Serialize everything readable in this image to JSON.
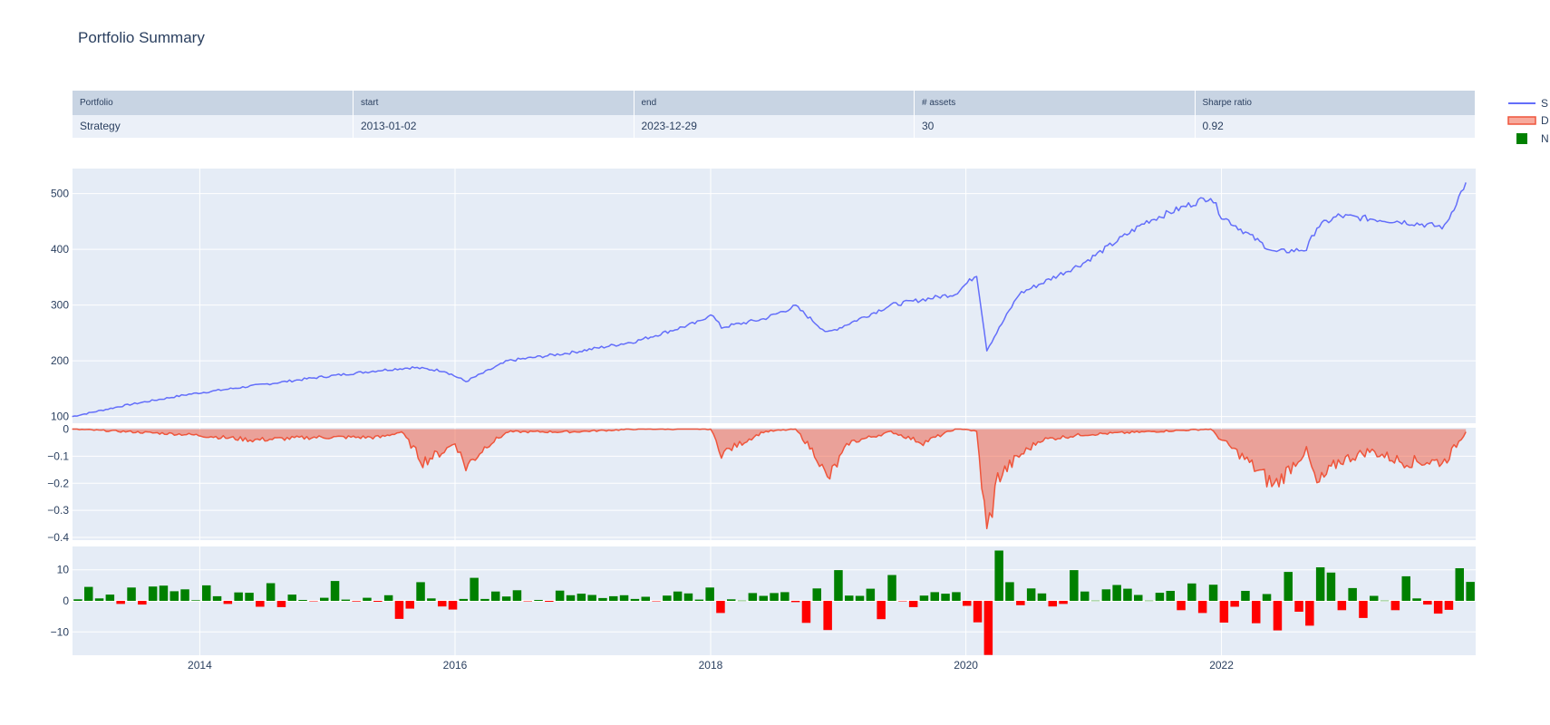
{
  "title": "Portfolio Summary",
  "table": {
    "headers": [
      "Portfolio",
      "start",
      "end",
      "# assets",
      "Sharpe ratio"
    ],
    "row": [
      "Strategy",
      "2013-01-02",
      "2023-12-29",
      "30",
      "0.92"
    ]
  },
  "colors": {
    "nav_line": "#636efa",
    "drawdown_line": "#ef553b",
    "drawdown_fill": "rgba(239,85,59,0.5)",
    "bar_positive": "#008000",
    "bar_negative": "#ff0000",
    "plot_bg": "#e5ecf6",
    "header_bg": "#c8d4e3",
    "cell_bg": "#ebf0f8"
  },
  "chart_data": {
    "type": "line",
    "x_range": [
      "2013-01-02",
      "2023-12-29"
    ],
    "x_ticks": [
      "2014",
      "2016",
      "2018",
      "2020",
      "2022"
    ],
    "legend": {
      "placement": "top-right",
      "entries": [
        {
          "name": "S",
          "kind": "line"
        },
        {
          "name": "D",
          "kind": "area"
        },
        {
          "name": "N",
          "kind": "bar"
        }
      ]
    },
    "panels": [
      {
        "name": "nav",
        "type": "line",
        "ylim": [
          88,
          545
        ],
        "y_ticks": [
          "100",
          "200",
          "300",
          "400",
          "500"
        ],
        "series": [
          {
            "x": [
              "2013-01",
              "2013-06",
              "2013-12",
              "2014-06",
              "2014-12",
              "2015-06",
              "2015-09",
              "2015-12",
              "2016-02",
              "2016-06",
              "2016-12",
              "2017-06",
              "2017-12",
              "2018-01",
              "2018-02",
              "2018-06",
              "2018-09",
              "2018-12",
              "2019-06",
              "2019-12",
              "2020-02",
              "2020-03",
              "2020-06",
              "2020-12",
              "2021-06",
              "2021-12",
              "2022-01",
              "2022-06",
              "2022-09",
              "2022-10",
              "2022-12",
              "2023-06",
              "2023-10",
              "2023-12"
            ],
            "y": [
              100,
              120,
              140,
              155,
              170,
              183,
              188,
              182,
              163,
              200,
              215,
              235,
              270,
              285,
              260,
              275,
              298,
              250,
              300,
              320,
              355,
              220,
              320,
              375,
              450,
              495,
              460,
              395,
              400,
              440,
              460,
              450,
              440,
              520
            ]
          }
        ]
      },
      {
        "name": "drawdown",
        "type": "area",
        "ylim": [
          -0.41,
          0.005
        ],
        "y_ticks": [
          "0",
          "−0.1",
          "−0.2",
          "−0.3",
          "−0.4"
        ],
        "series": [
          {
            "x": [
              "2013-01",
              "2013-12",
              "2014-06",
              "2014-12",
              "2015-06",
              "2015-08",
              "2015-10",
              "2015-12",
              "2016-01",
              "2016-02",
              "2016-04",
              "2016-06",
              "2016-12",
              "2017-06",
              "2017-12",
              "2018-01",
              "2018-02",
              "2018-04",
              "2018-06",
              "2018-09",
              "2018-11",
              "2018-12",
              "2019-02",
              "2019-06",
              "2019-09",
              "2019-12",
              "2020-01",
              "2020-02",
              "2020-03",
              "2020-04",
              "2020-06",
              "2020-08",
              "2020-12",
              "2021-06",
              "2021-12",
              "2022-01",
              "2022-03",
              "2022-06",
              "2022-08",
              "2022-09",
              "2022-10",
              "2022-12",
              "2023-03",
              "2023-06",
              "2023-10",
              "2023-12"
            ],
            "y": [
              0,
              -0.02,
              -0.04,
              -0.03,
              -0.03,
              -0.01,
              -0.12,
              -0.08,
              -0.05,
              -0.14,
              -0.06,
              -0.01,
              -0.01,
              0,
              0,
              0,
              -0.09,
              -0.05,
              -0.01,
              0,
              -0.1,
              -0.19,
              -0.05,
              -0.01,
              -0.05,
              0,
              0,
              -0.01,
              -0.39,
              -0.18,
              -0.1,
              -0.04,
              -0.02,
              -0.01,
              0,
              -0.04,
              -0.1,
              -0.21,
              -0.12,
              -0.08,
              -0.21,
              -0.12,
              -0.08,
              -0.12,
              -0.12,
              -0.01
            ]
          }
        ]
      },
      {
        "name": "monthly",
        "type": "bar",
        "ylim": [
          -17.5,
          17.5
        ],
        "y_ticks": [
          "10",
          "0",
          "−10"
        ],
        "values": [
          0.5,
          4.5,
          0.8,
          2.0,
          -1.0,
          4.3,
          -1.2,
          4.6,
          4.9,
          3.1,
          3.7,
          0.2,
          5.0,
          1.5,
          -1.0,
          2.7,
          2.6,
          -1.9,
          5.7,
          -2.0,
          2.0,
          0.3,
          -0.1,
          1.0,
          6.4,
          0.4,
          -0.2,
          1.0,
          -0.3,
          1.8,
          -5.8,
          -2.5,
          6.0,
          0.8,
          -1.8,
          -2.8,
          0.6,
          7.4,
          0.6,
          3.0,
          1.4,
          3.4,
          -0.1,
          0.3,
          -0.3,
          3.3,
          1.8,
          2.3,
          1.9,
          0.9,
          1.5,
          1.8,
          0.6,
          1.3,
          -0.1,
          1.7,
          3.0,
          2.4,
          0.4,
          4.3,
          -3.9,
          0.5,
          0.1,
          2.5,
          1.6,
          2.5,
          2.8,
          -0.4,
          -7.1,
          4.0,
          -9.4,
          9.9,
          1.7,
          1.6,
          3.9,
          -5.9,
          8.3,
          -0.1,
          -2.0,
          1.7,
          2.8,
          2.3,
          2.8,
          -1.6,
          -6.9,
          -17.4,
          16.2,
          6.0,
          -1.4,
          4.0,
          2.4,
          -1.8,
          -1.0,
          9.9,
          3.0,
          0.1,
          3.7,
          5.1,
          3.9,
          1.9,
          0.1,
          2.6,
          3.2,
          -3.0,
          5.6,
          -3.9,
          5.2,
          -7.0,
          -1.9,
          3.2,
          -7.2,
          2.2,
          -9.5,
          9.3,
          -3.5,
          -8.0,
          10.8,
          9.1,
          -3.0,
          4.1,
          -5.5,
          1.6,
          0.1,
          -3.0,
          7.9,
          0.8,
          -1.2,
          -4.1,
          -2.9,
          10.5,
          6.1
        ]
      }
    ]
  }
}
